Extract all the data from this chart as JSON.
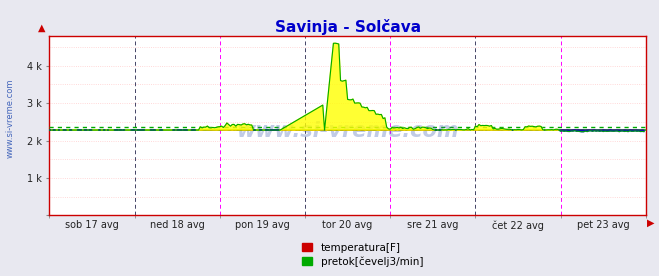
{
  "title": "Savinja - Solčava",
  "title_color": "#0000cc",
  "title_fontsize": 11,
  "bg_color": "#e8e8f0",
  "plot_bg_color": "#ffffff",
  "x_labels": [
    "sob 17 avg",
    "ned 18 avg",
    "pon 19 avg",
    "tor 20 avg",
    "sre 21 avg",
    "čet 22 avg",
    "pet 23 avg"
  ],
  "y_ticks": [
    0,
    1000,
    2000,
    3000,
    4000
  ],
  "y_tick_labels": [
    "",
    "1 k",
    "2 k",
    "3 k",
    "4 k"
  ],
  "ylim": [
    0,
    4800
  ],
  "ylabel_text": "www.si-vreme.com",
  "ylabel_color": "#4466bb",
  "vline_colors": [
    "#ff00ff",
    "#000080",
    "#ff00ff",
    "#000080",
    "#ff00ff",
    "#000080",
    "#ff00ff",
    "#000080"
  ],
  "hline_color_solid": "#00cc00",
  "hline_color_dotted": "#00aa00",
  "hline_value": 2280,
  "hline_dotted_value": 2350,
  "axis_color": "#cc0000",
  "temp_color": "#cc0000",
  "flow_color": "#00aa00",
  "legend_items": [
    {
      "label": "temperatura[F]",
      "color": "#cc0000"
    },
    {
      "label": "pretok[čevelj3/min]",
      "color": "#00aa00"
    }
  ],
  "watermark": "www.si-vreme.com",
  "watermark_color": "#3355aa",
  "watermark_alpha": 0.3,
  "n_points": 336,
  "temp_base": 2280,
  "flow_pre_spike": 2280,
  "flow_spike_peak": 4600,
  "spike_index": 155,
  "grid_h_color": "#ffcccc",
  "grid_v_major_color": "#ff00ff",
  "grid_v_minor_color": "#555577"
}
